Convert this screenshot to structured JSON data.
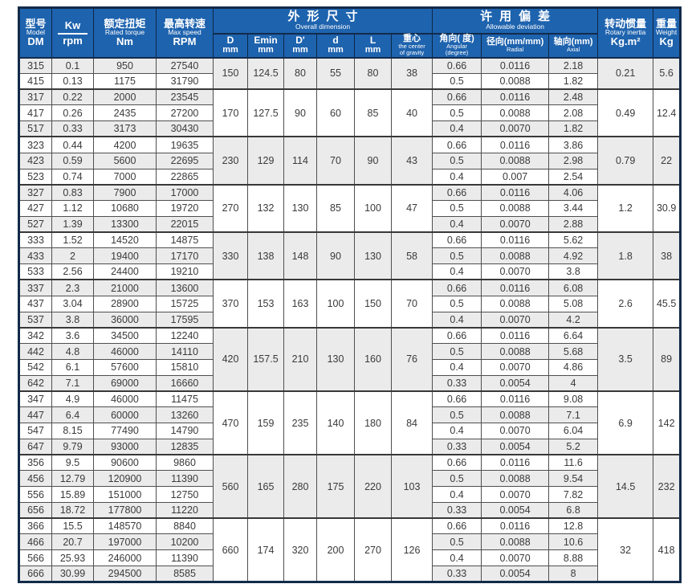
{
  "colors": {
    "header_blue": "#1e63ae",
    "border_navy": "#132b4a",
    "row_stripe": "#ebebeb",
    "grid_line": "#4f4f4f",
    "text": "#3a3a3a"
  },
  "table": {
    "header": {
      "model": {
        "zh": "型号",
        "en": "Model",
        "sub": "DM"
      },
      "kw": {
        "top": "Kw",
        "bottom": "rpm"
      },
      "torque": {
        "zh": "额定扭矩",
        "en": "Rated torque",
        "unit": "Nm"
      },
      "speed": {
        "zh": "最高转速",
        "en": "Max speed",
        "unit": "RPM"
      },
      "dimension_group": {
        "zh": "外形尺寸",
        "en": "Overall dimension"
      },
      "dim_cols": [
        {
          "top": "D",
          "bottom": "mm"
        },
        {
          "top": "Emin",
          "bottom": "mm"
        },
        {
          "top": "D'",
          "bottom": "mm"
        },
        {
          "top": "d",
          "bottom": "mm"
        },
        {
          "top": "L",
          "bottom": "mm"
        },
        {
          "top": "重心",
          "bottom": "the center\nof gravity"
        }
      ],
      "deviation_group": {
        "zh": "许用偏差",
        "en": "Allowable deviation"
      },
      "dev_cols": [
        {
          "top": "角向( 度)",
          "bottom": "Angular\n(degree)"
        },
        {
          "top": "径向(mm/mm)",
          "bottom": "Radial"
        },
        {
          "top": "轴向(mm)",
          "bottom": "Axial"
        }
      ],
      "inertia": {
        "zh": "转动惯量",
        "en": "Rotary inertia",
        "unit": "Kg.m²"
      },
      "weight": {
        "zh": "重量",
        "en": "Weight",
        "unit": "Kg"
      }
    },
    "groups": [
      {
        "D": "150",
        "Emin": "124.5",
        "Dp": "80",
        "d": "55",
        "L": "80",
        "cg": "38",
        "inertia": "0.21",
        "weight": "5.6",
        "rows": [
          {
            "model": "315",
            "kw": "0.1",
            "torque": "950",
            "speed": "27540",
            "angular": "0.66",
            "radial": "0.0116",
            "axial": "2.18"
          },
          {
            "model": "415",
            "kw": "0.13",
            "torque": "1175",
            "speed": "31790",
            "angular": "0.5",
            "radial": "0.0088",
            "axial": "1.82"
          }
        ]
      },
      {
        "D": "170",
        "Emin": "127.5",
        "Dp": "90",
        "d": "60",
        "L": "85",
        "cg": "40",
        "inertia": "0.49",
        "weight": "12.4",
        "rows": [
          {
            "model": "317",
            "kw": "0.22",
            "torque": "2000",
            "speed": "23545",
            "angular": "0.66",
            "radial": "0.0116",
            "axial": "2.48"
          },
          {
            "model": "417",
            "kw": "0.26",
            "torque": "2435",
            "speed": "27200",
            "angular": "0.5",
            "radial": "0.0088",
            "axial": "2.08"
          },
          {
            "model": "517",
            "kw": "0.33",
            "torque": "3173",
            "speed": "30430",
            "angular": "0.4",
            "radial": "0.0070",
            "axial": "1.82"
          }
        ]
      },
      {
        "D": "230",
        "Emin": "129",
        "Dp": "114",
        "d": "70",
        "L": "90",
        "cg": "43",
        "inertia": "0.79",
        "weight": "22",
        "rows": [
          {
            "model": "323",
            "kw": "0.44",
            "torque": "4200",
            "speed": "19635",
            "angular": "0.66",
            "radial": "0.0116",
            "axial": "3.86"
          },
          {
            "model": "423",
            "kw": "0.59",
            "torque": "5600",
            "speed": "22695",
            "angular": "0.5",
            "radial": "0.0088",
            "axial": "2.98"
          },
          {
            "model": "523",
            "kw": "0.74",
            "torque": "7000",
            "speed": "22865",
            "angular": "0.4",
            "radial": "0.007",
            "axial": "2.54"
          }
        ]
      },
      {
        "D": "270",
        "Emin": "132",
        "Dp": "130",
        "d": "85",
        "L": "100",
        "cg": "47",
        "inertia": "1.2",
        "weight": "30.9",
        "rows": [
          {
            "model": "327",
            "kw": "0.83",
            "torque": "7900",
            "speed": "17000",
            "angular": "0.66",
            "radial": "0.0116",
            "axial": "4.06"
          },
          {
            "model": "427",
            "kw": "1.12",
            "torque": "10680",
            "speed": "19720",
            "angular": "0.5",
            "radial": "0.0088",
            "axial": "3.44"
          },
          {
            "model": "527",
            "kw": "1.39",
            "torque": "13300",
            "speed": "22015",
            "angular": "0.4",
            "radial": "0.0070",
            "axial": "2.88"
          }
        ]
      },
      {
        "D": "330",
        "Emin": "138",
        "Dp": "148",
        "d": "90",
        "L": "130",
        "cg": "58",
        "inertia": "1.8",
        "weight": "38",
        "rows": [
          {
            "model": "333",
            "kw": "1.52",
            "torque": "14520",
            "speed": "14875",
            "angular": "0.66",
            "radial": "0.0116",
            "axial": "5.62"
          },
          {
            "model": "433",
            "kw": "2",
            "torque": "19400",
            "speed": "17170",
            "angular": "0.5",
            "radial": "0.0088",
            "axial": "4.92"
          },
          {
            "model": "533",
            "kw": "2.56",
            "torque": "24400",
            "speed": "19210",
            "angular": "0.4",
            "radial": "0.0070",
            "axial": "3.8"
          }
        ]
      },
      {
        "D": "370",
        "Emin": "153",
        "Dp": "163",
        "d": "100",
        "L": "150",
        "cg": "70",
        "inertia": "2.6",
        "weight": "45.5",
        "rows": [
          {
            "model": "337",
            "kw": "2.3",
            "torque": "21000",
            "speed": "13600",
            "angular": "0.66",
            "radial": "0.0116",
            "axial": "6.08"
          },
          {
            "model": "437",
            "kw": "3.04",
            "torque": "28900",
            "speed": "15725",
            "angular": "0.5",
            "radial": "0.0088",
            "axial": "5.08"
          },
          {
            "model": "537",
            "kw": "3.8",
            "torque": "36000",
            "speed": "17595",
            "angular": "0.4",
            "radial": "0.0070",
            "axial": "4.2"
          }
        ]
      },
      {
        "D": "420",
        "Emin": "157.5",
        "Dp": "210",
        "d": "130",
        "L": "160",
        "cg": "76",
        "inertia": "3.5",
        "weight": "89",
        "rows": [
          {
            "model": "342",
            "kw": "3.6",
            "torque": "34500",
            "speed": "12240",
            "angular": "0.66",
            "radial": "0.0116",
            "axial": "6.64"
          },
          {
            "model": "442",
            "kw": "4.8",
            "torque": "46000",
            "speed": "14110",
            "angular": "0.5",
            "radial": "0.0088",
            "axial": "5.68"
          },
          {
            "model": "542",
            "kw": "6.1",
            "torque": "57600",
            "speed": "15810",
            "angular": "0.4",
            "radial": "0.0070",
            "axial": "4.86"
          },
          {
            "model": "642",
            "kw": "7.1",
            "torque": "69000",
            "speed": "16660",
            "angular": "0.33",
            "radial": "0.0054",
            "axial": "4"
          }
        ]
      },
      {
        "D": "470",
        "Emin": "159",
        "Dp": "235",
        "d": "140",
        "L": "180",
        "cg": "84",
        "inertia": "6.9",
        "weight": "142",
        "rows": [
          {
            "model": "347",
            "kw": "4.9",
            "torque": "46000",
            "speed": "11475",
            "angular": "0.66",
            "radial": "0.0116",
            "axial": "9.08"
          },
          {
            "model": "447",
            "kw": "6.4",
            "torque": "60000",
            "speed": "13260",
            "angular": "0.5",
            "radial": "0.0088",
            "axial": "7.1"
          },
          {
            "model": "547",
            "kw": "8.15",
            "torque": "77490",
            "speed": "14790",
            "angular": "0.4",
            "radial": "0.0070",
            "axial": "6.04"
          },
          {
            "model": "647",
            "kw": "9.79",
            "torque": "93000",
            "speed": "12835",
            "angular": "0.33",
            "radial": "0.0054",
            "axial": "5.2"
          }
        ]
      },
      {
        "D": "560",
        "Emin": "165",
        "Dp": "280",
        "d": "175",
        "L": "220",
        "cg": "103",
        "inertia": "14.5",
        "weight": "232",
        "rows": [
          {
            "model": "356",
            "kw": "9.5",
            "torque": "90600",
            "speed": "9860",
            "angular": "0.66",
            "radial": "0.0116",
            "axial": "11.6"
          },
          {
            "model": "456",
            "kw": "12.79",
            "torque": "120900",
            "speed": "11390",
            "angular": "0.5",
            "radial": "0.0088",
            "axial": "9.54"
          },
          {
            "model": "556",
            "kw": "15.89",
            "torque": "151000",
            "speed": "12750",
            "angular": "0.4",
            "radial": "0.0070",
            "axial": "7.82"
          },
          {
            "model": "656",
            "kw": "18.72",
            "torque": "177800",
            "speed": "11220",
            "angular": "0.33",
            "radial": "0.0054",
            "axial": "6.8"
          }
        ]
      },
      {
        "D": "660",
        "Emin": "174",
        "Dp": "320",
        "d": "200",
        "L": "270",
        "cg": "126",
        "inertia": "32",
        "weight": "418",
        "rows": [
          {
            "model": "366",
            "kw": "15.5",
            "torque": "148570",
            "speed": "8840",
            "angular": "0.66",
            "radial": "0.0116",
            "axial": "12.8"
          },
          {
            "model": "466",
            "kw": "20.7",
            "torque": "197000",
            "speed": "10200",
            "angular": "0.5",
            "radial": "0.0088",
            "axial": "10.6"
          },
          {
            "model": "566",
            "kw": "25.93",
            "torque": "246000",
            "speed": "11390",
            "angular": "0.4",
            "radial": "0.0070",
            "axial": "8.88"
          },
          {
            "model": "666",
            "kw": "30.99",
            "torque": "294500",
            "speed": "8585",
            "angular": "0.33",
            "radial": "0.0054",
            "axial": "8"
          }
        ]
      }
    ]
  }
}
